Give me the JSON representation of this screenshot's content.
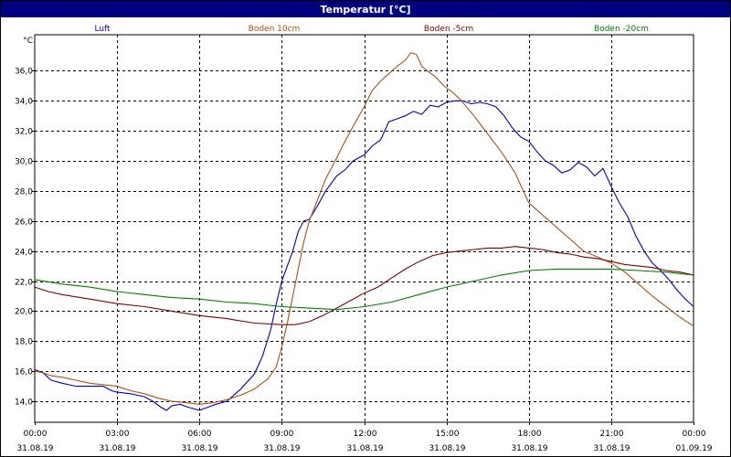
{
  "window": {
    "title": "Temperatur [°C]"
  },
  "chart_data": {
    "type": "line",
    "title": "Temperatur [°C]",
    "ylabel": "°C",
    "xlabel": "",
    "y_unit": "°C",
    "ylim": [
      12.6,
      38.4
    ],
    "y_ticks": [
      14.0,
      16.0,
      18.0,
      20.0,
      22.0,
      24.0,
      26.0,
      28.0,
      30.0,
      32.0,
      34.0,
      36.0
    ],
    "y_tick_labels": [
      "14,0",
      "16,0",
      "18,0",
      "20,0",
      "22,0",
      "24,0",
      "26,0",
      "28,0",
      "30,0",
      "32,0",
      "34,0",
      "36,0"
    ],
    "x_unit": "hours since 31.08.19 00:00",
    "xlim": [
      0,
      24
    ],
    "x_ticks": [
      0,
      3,
      6,
      9,
      12,
      15,
      18,
      21,
      24
    ],
    "x_tick_labels": [
      {
        "time": "00:00",
        "date": "31.08.19"
      },
      {
        "time": "03:00",
        "date": "31.08.19"
      },
      {
        "time": "06:00",
        "date": "31.08.19"
      },
      {
        "time": "09:00",
        "date": "31.08.19"
      },
      {
        "time": "12:00",
        "date": "31.08.19"
      },
      {
        "time": "15:00",
        "date": "31.08.19"
      },
      {
        "time": "18:00",
        "date": "31.08.19"
      },
      {
        "time": "21:00",
        "date": "31.08.19"
      },
      {
        "time": "00:00",
        "date": "01.09.19"
      }
    ],
    "grid": true,
    "legend_position": "top",
    "series": [
      {
        "name": "Luft",
        "color": "#0000cc",
        "points": [
          [
            0.0,
            16.1
          ],
          [
            0.3,
            15.9
          ],
          [
            0.6,
            15.4
          ],
          [
            1.0,
            15.2
          ],
          [
            1.5,
            15.0
          ],
          [
            2.0,
            15.0
          ],
          [
            2.5,
            15.0
          ],
          [
            2.8,
            14.7
          ],
          [
            3.0,
            14.6
          ],
          [
            3.5,
            14.5
          ],
          [
            4.0,
            14.3
          ],
          [
            4.3,
            14.0
          ],
          [
            4.6,
            13.6
          ],
          [
            4.8,
            13.4
          ],
          [
            5.0,
            13.7
          ],
          [
            5.3,
            13.8
          ],
          [
            5.6,
            13.6
          ],
          [
            6.0,
            13.4
          ],
          [
            6.3,
            13.6
          ],
          [
            6.6,
            13.8
          ],
          [
            7.0,
            14.0
          ],
          [
            7.5,
            14.8
          ],
          [
            8.0,
            15.8
          ],
          [
            8.3,
            17.0
          ],
          [
            8.6,
            18.8
          ],
          [
            8.8,
            20.5
          ],
          [
            9.0,
            22.0
          ],
          [
            9.2,
            23.0
          ],
          [
            9.4,
            24.0
          ],
          [
            9.6,
            25.3
          ],
          [
            9.8,
            26.0
          ],
          [
            10.0,
            26.1
          ],
          [
            10.3,
            27.0
          ],
          [
            10.6,
            28.0
          ],
          [
            11.0,
            29.0
          ],
          [
            11.3,
            29.4
          ],
          [
            11.6,
            30.0
          ],
          [
            12.0,
            30.4
          ],
          [
            12.3,
            31.0
          ],
          [
            12.6,
            31.4
          ],
          [
            12.9,
            32.6
          ],
          [
            13.2,
            32.8
          ],
          [
            13.5,
            33.0
          ],
          [
            13.8,
            33.3
          ],
          [
            14.1,
            33.1
          ],
          [
            14.4,
            33.7
          ],
          [
            14.7,
            33.6
          ],
          [
            15.0,
            33.9
          ],
          [
            15.3,
            34.0
          ],
          [
            15.6,
            34.0
          ],
          [
            15.9,
            33.8
          ],
          [
            16.2,
            33.9
          ],
          [
            16.5,
            33.8
          ],
          [
            16.8,
            33.6
          ],
          [
            17.1,
            33.0
          ],
          [
            17.4,
            32.2
          ],
          [
            17.7,
            31.6
          ],
          [
            18.0,
            31.3
          ],
          [
            18.3,
            30.6
          ],
          [
            18.6,
            30.0
          ],
          [
            18.9,
            29.7
          ],
          [
            19.2,
            29.2
          ],
          [
            19.5,
            29.4
          ],
          [
            19.8,
            29.9
          ],
          [
            20.1,
            29.6
          ],
          [
            20.4,
            29.0
          ],
          [
            20.7,
            29.5
          ],
          [
            21.0,
            28.3
          ],
          [
            21.3,
            27.2
          ],
          [
            21.6,
            26.3
          ],
          [
            21.9,
            25.0
          ],
          [
            22.2,
            24.0
          ],
          [
            22.5,
            23.2
          ],
          [
            22.8,
            22.7
          ],
          [
            23.1,
            22.1
          ],
          [
            23.4,
            21.4
          ],
          [
            23.7,
            20.8
          ],
          [
            24.0,
            20.3
          ]
        ]
      },
      {
        "name": "Boden 10cm",
        "color": "#b05010",
        "points": [
          [
            0.0,
            16.0
          ],
          [
            0.3,
            15.9
          ],
          [
            0.6,
            15.7
          ],
          [
            1.0,
            15.6
          ],
          [
            1.5,
            15.4
          ],
          [
            2.0,
            15.2
          ],
          [
            2.5,
            15.1
          ],
          [
            3.0,
            15.0
          ],
          [
            3.5,
            14.7
          ],
          [
            4.0,
            14.5
          ],
          [
            4.5,
            14.2
          ],
          [
            5.0,
            14.0
          ],
          [
            5.5,
            13.9
          ],
          [
            6.0,
            13.8
          ],
          [
            6.5,
            13.9
          ],
          [
            7.0,
            14.1
          ],
          [
            7.5,
            14.4
          ],
          [
            8.0,
            14.8
          ],
          [
            8.5,
            15.5
          ],
          [
            8.8,
            16.3
          ],
          [
            9.0,
            17.6
          ],
          [
            9.2,
            19.2
          ],
          [
            9.4,
            21.0
          ],
          [
            9.6,
            22.8
          ],
          [
            9.8,
            24.6
          ],
          [
            10.0,
            26.0
          ],
          [
            10.3,
            27.4
          ],
          [
            10.6,
            28.8
          ],
          [
            11.0,
            30.2
          ],
          [
            11.3,
            31.3
          ],
          [
            11.6,
            32.3
          ],
          [
            12.0,
            33.6
          ],
          [
            12.3,
            34.7
          ],
          [
            12.6,
            35.3
          ],
          [
            12.9,
            35.8
          ],
          [
            13.2,
            36.3
          ],
          [
            13.5,
            36.7
          ],
          [
            13.7,
            37.2
          ],
          [
            13.9,
            37.1
          ],
          [
            14.1,
            36.3
          ],
          [
            14.3,
            36.0
          ],
          [
            14.6,
            35.6
          ],
          [
            14.9,
            35.0
          ],
          [
            15.2,
            34.6
          ],
          [
            15.5,
            34.1
          ],
          [
            16.0,
            33.0
          ],
          [
            16.5,
            31.8
          ],
          [
            17.0,
            30.6
          ],
          [
            17.5,
            29.2
          ],
          [
            18.0,
            27.2
          ],
          [
            18.5,
            26.4
          ],
          [
            19.0,
            25.6
          ],
          [
            19.5,
            24.8
          ],
          [
            20.0,
            24.0
          ],
          [
            20.5,
            23.6
          ],
          [
            21.0,
            23.2
          ],
          [
            21.5,
            22.6
          ],
          [
            22.0,
            21.8
          ],
          [
            22.5,
            21.0
          ],
          [
            23.0,
            20.3
          ],
          [
            23.5,
            19.6
          ],
          [
            24.0,
            19.0
          ]
        ]
      },
      {
        "name": "Boden -5cm",
        "color": "#800000",
        "points": [
          [
            0.0,
            21.6
          ],
          [
            0.5,
            21.3
          ],
          [
            1.0,
            21.1
          ],
          [
            2.0,
            20.8
          ],
          [
            3.0,
            20.5
          ],
          [
            4.0,
            20.3
          ],
          [
            5.0,
            20.0
          ],
          [
            6.0,
            19.7
          ],
          [
            7.0,
            19.5
          ],
          [
            8.0,
            19.2
          ],
          [
            9.0,
            19.1
          ],
          [
            9.5,
            19.1
          ],
          [
            10.0,
            19.3
          ],
          [
            10.5,
            19.7
          ],
          [
            11.0,
            20.2
          ],
          [
            11.5,
            20.7
          ],
          [
            12.0,
            21.2
          ],
          [
            12.5,
            21.6
          ],
          [
            13.0,
            22.2
          ],
          [
            13.5,
            22.8
          ],
          [
            14.0,
            23.3
          ],
          [
            14.5,
            23.7
          ],
          [
            15.0,
            23.9
          ],
          [
            15.5,
            24.0
          ],
          [
            16.0,
            24.1
          ],
          [
            16.5,
            24.2
          ],
          [
            17.0,
            24.2
          ],
          [
            17.5,
            24.3
          ],
          [
            18.0,
            24.2
          ],
          [
            18.5,
            24.1
          ],
          [
            19.0,
            23.9
          ],
          [
            19.5,
            23.8
          ],
          [
            20.0,
            23.6
          ],
          [
            20.5,
            23.5
          ],
          [
            21.0,
            23.3
          ],
          [
            21.5,
            23.1
          ],
          [
            22.0,
            23.0
          ],
          [
            22.5,
            22.9
          ],
          [
            23.0,
            22.7
          ],
          [
            23.5,
            22.6
          ],
          [
            24.0,
            22.4
          ]
        ]
      },
      {
        "name": "Boden -20cm",
        "color": "#008000",
        "points": [
          [
            0.0,
            22.1
          ],
          [
            1.0,
            21.8
          ],
          [
            2.0,
            21.6
          ],
          [
            3.0,
            21.3
          ],
          [
            4.0,
            21.1
          ],
          [
            5.0,
            20.9
          ],
          [
            6.0,
            20.8
          ],
          [
            7.0,
            20.6
          ],
          [
            8.0,
            20.5
          ],
          [
            9.0,
            20.3
          ],
          [
            10.0,
            20.2
          ],
          [
            11.0,
            20.1
          ],
          [
            12.0,
            20.3
          ],
          [
            13.0,
            20.6
          ],
          [
            14.0,
            21.1
          ],
          [
            15.0,
            21.6
          ],
          [
            16.0,
            22.0
          ],
          [
            17.0,
            22.4
          ],
          [
            18.0,
            22.7
          ],
          [
            19.0,
            22.8
          ],
          [
            20.0,
            22.8
          ],
          [
            21.0,
            22.8
          ],
          [
            22.0,
            22.7
          ],
          [
            23.0,
            22.6
          ],
          [
            24.0,
            22.4
          ]
        ]
      }
    ]
  }
}
